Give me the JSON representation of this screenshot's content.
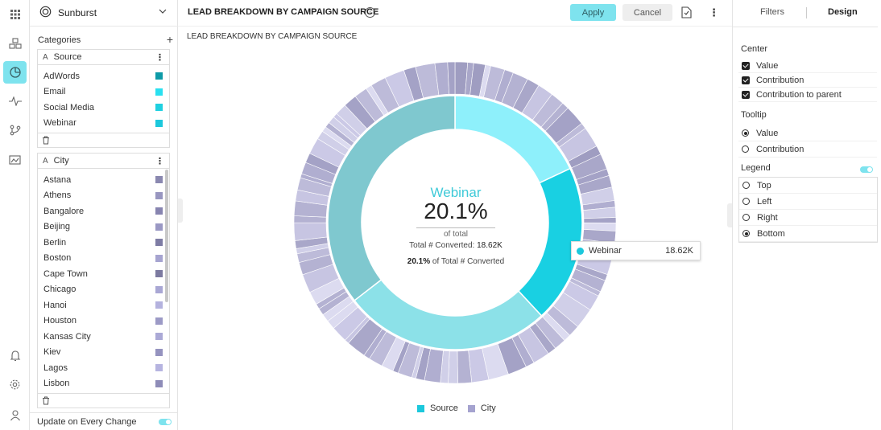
{
  "rail": {
    "icons": [
      "grid-icon",
      "cubes-icon",
      "chart-icon",
      "pulse-icon",
      "branch-icon",
      "image-icon",
      "bell-icon",
      "gear-icon",
      "user-icon"
    ]
  },
  "left_panel": {
    "chart_type_label": "Sunburst",
    "categories_label": "Categories",
    "source_box": {
      "type_tag": "A",
      "field": "Source",
      "items": [
        {
          "label": "AdWords",
          "color": "#0e9aa7"
        },
        {
          "label": "Email",
          "color": "#29e0f0"
        },
        {
          "label": "Social Media",
          "color": "#1fd0e0"
        },
        {
          "label": "Webinar",
          "color": "#1cc8dc"
        }
      ]
    },
    "city_box": {
      "type_tag": "A",
      "field": "City",
      "items": [
        {
          "label": "Astana",
          "color": "#8a88b0"
        },
        {
          "label": "Athens",
          "color": "#9896c0"
        },
        {
          "label": "Bangalore",
          "color": "#8784b0"
        },
        {
          "label": "Beijing",
          "color": "#9a98c4"
        },
        {
          "label": "Berlin",
          "color": "#7e7ca4"
        },
        {
          "label": "Boston",
          "color": "#a6a4d0"
        },
        {
          "label": "Cape Town",
          "color": "#7c7aa0"
        },
        {
          "label": "Chicago",
          "color": "#a9a7d4"
        },
        {
          "label": "Hanoi",
          "color": "#b4b2de"
        },
        {
          "label": "Houston",
          "color": "#9c9ac6"
        },
        {
          "label": "Kansas City",
          "color": "#aba9d6"
        },
        {
          "label": "Kiev",
          "color": "#9593bf"
        },
        {
          "label": "Lagos",
          "color": "#b6b4e0"
        },
        {
          "label": "Lisbon",
          "color": "#8e8cb8"
        }
      ]
    },
    "update_label": "Update on Every Change"
  },
  "main": {
    "title": "LEAD BREAKDOWN BY CAMPAIGN SOURCE",
    "subtitle": "LEAD BREAKDOWN BY CAMPAIGN SOURCE",
    "apply_label": "Apply",
    "cancel_label": "Cancel",
    "info_glyph": "i",
    "center": {
      "name": "Webinar",
      "pct": "20.1%",
      "of_total": "of total",
      "total_label": "Total # Converted: ",
      "total_value": "18.62K",
      "pct_label_bold": "20.1%",
      "pct_label_rest": " of Total # Converted"
    },
    "tooltip": {
      "label": "Webinar",
      "value": "18.62K",
      "color": "#1cc8dc"
    },
    "legend": [
      {
        "label": "Source",
        "color": "#1cc8dc"
      },
      {
        "label": "City",
        "color": "#a5a3cf"
      }
    ]
  },
  "chart_data": {
    "type": "sunburst",
    "title": "LEAD BREAKDOWN BY CAMPAIGN SOURCE",
    "inner_ring": [
      {
        "label": "Email",
        "pct": 18.0,
        "color": "#8ef0fb"
      },
      {
        "label": "Webinar",
        "pct": 20.1,
        "color": "#19d0e2"
      },
      {
        "label": "Social Media",
        "pct": 26.4,
        "color": "#8ce1e8"
      },
      {
        "label": "AdWords",
        "pct": 35.5,
        "color": "#7fc8cf"
      }
    ],
    "outer_colors": [
      "#b4b2d2",
      "#c7c5e2",
      "#a9a7c9",
      "#d0cfe8",
      "#bdbbd9",
      "#9f9dc1",
      "#cbc9e6",
      "#b0aed0",
      "#dcdbf0",
      "#a4a2c6"
    ]
  },
  "right_panel": {
    "tab_filters": "Filters",
    "tab_design": "Design",
    "center_title": "Center",
    "center_opts": [
      "Value",
      "Contribution",
      "Contribution to parent"
    ],
    "tooltip_title": "Tooltip",
    "tooltip_opts": [
      {
        "label": "Value",
        "on": true
      },
      {
        "label": "Contribution",
        "on": false
      }
    ],
    "legend_title": "Legend",
    "legend_opts": [
      {
        "label": "Top",
        "on": false
      },
      {
        "label": "Left",
        "on": false
      },
      {
        "label": "Right",
        "on": false
      },
      {
        "label": "Bottom",
        "on": true
      }
    ]
  }
}
